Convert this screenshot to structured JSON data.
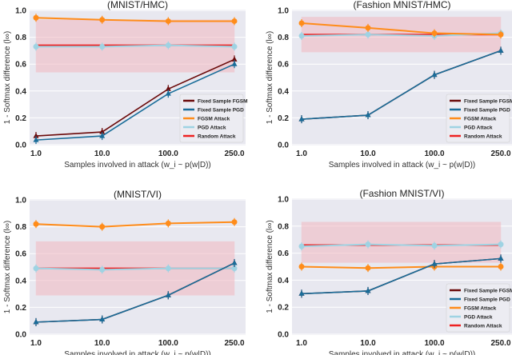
{
  "colors": {
    "Fixed Sample FGSM": "#6b0a0a",
    "Fixed Sample PGD": "#1a6d99",
    "FGSM Attack": "#ff8c1a",
    "PGD Attack": "#9fd3e3",
    "Random Attack": "#ee2222",
    "band": "#f2b8c0",
    "plot_bg": "#e8e8f0"
  },
  "chart_data": [
    {
      "type": "line",
      "title": "(MNIST/HMC)",
      "xlabel": "Samples involved in attack (w_i ~ p(w|D))",
      "ylabel": "1 - Softmax difference (l∞)",
      "categories": [
        "1.0",
        "10.0",
        "100.0",
        "250.0"
      ],
      "ylim": [
        0,
        1
      ],
      "yticks": [
        "0.0",
        "0.2",
        "0.4",
        "0.6",
        "0.8",
        "1.0"
      ],
      "grid": true,
      "legend": "bottom-right",
      "random_band": [
        0.54,
        0.93
      ],
      "series": [
        {
          "name": "Fixed Sample FGSM",
          "values": [
            0.065,
            0.095,
            0.415,
            0.635
          ]
        },
        {
          "name": "Fixed Sample PGD",
          "values": [
            0.035,
            0.065,
            0.38,
            0.6
          ]
        },
        {
          "name": "FGSM Attack",
          "values": [
            0.945,
            0.93,
            0.92,
            0.92
          ]
        },
        {
          "name": "PGD Attack",
          "values": [
            0.73,
            0.73,
            0.74,
            0.73
          ]
        },
        {
          "name": "Random Attack",
          "values": [
            0.74,
            0.74,
            0.74,
            0.74
          ]
        }
      ]
    },
    {
      "type": "line",
      "title": "(Fashion MNIST/HMC)",
      "xlabel": "Samples involved in attack (w_i ~ p(w|D))",
      "ylabel": "1 - Softmax difference (l∞)",
      "categories": [
        "1.0",
        "10.0",
        "100.0",
        "250.0"
      ],
      "ylim": [
        0,
        1
      ],
      "yticks": [
        "0.0",
        "0.2",
        "0.4",
        "0.6",
        "0.8",
        "1.0"
      ],
      "grid": true,
      "legend": "bottom-right",
      "random_band": [
        0.69,
        0.95
      ],
      "series": [
        {
          "name": "Fixed Sample FGSM",
          "values": [
            0.19,
            0.22,
            0.52,
            0.7
          ]
        },
        {
          "name": "Fixed Sample PGD",
          "values": [
            0.19,
            0.22,
            0.52,
            0.7
          ]
        },
        {
          "name": "FGSM Attack",
          "values": [
            0.905,
            0.87,
            0.83,
            0.82
          ]
        },
        {
          "name": "PGD Attack",
          "values": [
            0.81,
            0.82,
            0.81,
            0.83
          ]
        },
        {
          "name": "Random Attack",
          "values": [
            0.82,
            0.82,
            0.82,
            0.82
          ]
        }
      ]
    },
    {
      "type": "line",
      "title": "(MNIST/VI)",
      "xlabel": "Samples involved in attack (w_i ~ p(w|D))",
      "ylabel": "1 - Softmax difference (l∞)",
      "categories": [
        "1.0",
        "10.0",
        "100.0",
        "250.0"
      ],
      "ylim": [
        0,
        1
      ],
      "yticks": [
        "0.0",
        "0.2",
        "0.4",
        "0.6",
        "0.8",
        "1.0"
      ],
      "grid": true,
      "legend": "none",
      "random_band": [
        0.29,
        0.69
      ],
      "series": [
        {
          "name": "Fixed Sample FGSM",
          "values": [
            0.09,
            0.11,
            0.29,
            0.53
          ]
        },
        {
          "name": "Fixed Sample PGD",
          "values": [
            0.09,
            0.11,
            0.29,
            0.53
          ]
        },
        {
          "name": "FGSM Attack",
          "values": [
            0.82,
            0.8,
            0.825,
            0.835
          ]
        },
        {
          "name": "PGD Attack",
          "values": [
            0.49,
            0.48,
            0.49,
            0.49
          ]
        },
        {
          "name": "Random Attack",
          "values": [
            0.49,
            0.49,
            0.49,
            0.49
          ]
        }
      ]
    },
    {
      "type": "line",
      "title": "(Fashion MNIST/VI)",
      "xlabel": "Samples involved in attack (w_i ~ p(w|D))",
      "ylabel": "1 - Softmax difference (l∞)",
      "categories": [
        "1.0",
        "10.0",
        "100.0",
        "250.0"
      ],
      "ylim": [
        0,
        1
      ],
      "yticks": [
        "0.0",
        "0.2",
        "0.4",
        "0.6",
        "0.8",
        "1.0"
      ],
      "grid": true,
      "legend": "bottom-right",
      "random_band": [
        0.53,
        0.83
      ],
      "series": [
        {
          "name": "Fixed Sample FGSM",
          "values": [
            0.3,
            0.32,
            0.52,
            0.56
          ]
        },
        {
          "name": "Fixed Sample PGD",
          "values": [
            0.3,
            0.32,
            0.52,
            0.56
          ]
        },
        {
          "name": "FGSM Attack",
          "values": [
            0.5,
            0.49,
            0.5,
            0.5
          ]
        },
        {
          "name": "PGD Attack",
          "values": [
            0.65,
            0.665,
            0.655,
            0.665
          ]
        },
        {
          "name": "Random Attack",
          "values": [
            0.66,
            0.66,
            0.66,
            0.66
          ]
        }
      ]
    }
  ]
}
